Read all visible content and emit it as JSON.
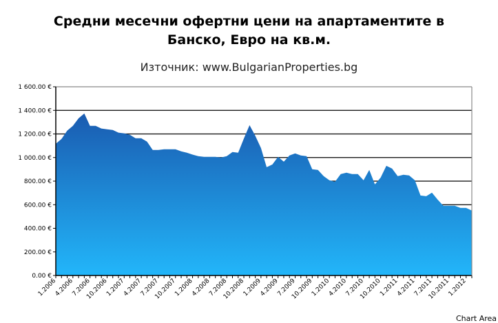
{
  "chart_data": {
    "type": "area",
    "title_line1": "Средни месечни офертни цени на апартаментите в",
    "title_line2": "Банско, Евро на кв.м.",
    "subtitle": "Източник: www.BulgarianProperties.bg",
    "xlabel": "",
    "ylabel": "",
    "ylim": [
      0,
      1600
    ],
    "y_ticks": [
      "0.00 €",
      "200.00 €",
      "400.00 €",
      "600.00 €",
      "800.00 €",
      "1 000.00 €",
      "1 200.00 €",
      "1 400.00 €",
      "1 600.00 €"
    ],
    "x_tick_labels": [
      "1.2006",
      "4.2006",
      "7.2006",
      "10.2006",
      "1.2007",
      "4.2007",
      "7.2007",
      "10.2007",
      "1.2008",
      "4.2008",
      "7.2008",
      "10.2008",
      "1.2009",
      "4.2009",
      "7.2009",
      "10.2009",
      "1.2010",
      "4.2010",
      "7.2010",
      "10.2010",
      "1.2011",
      "4.2011",
      "7.2011",
      "10.2011",
      "1.2012"
    ],
    "x_start": "1.2006",
    "x_end": "2.2012",
    "values": [
      1117,
      1158,
      1228,
      1269,
      1333,
      1374,
      1269,
      1269,
      1246,
      1240,
      1234,
      1211,
      1205,
      1193,
      1164,
      1164,
      1135,
      1064,
      1064,
      1070,
      1070,
      1070,
      1053,
      1041,
      1025,
      1012,
      1006,
      1006,
      1006,
      1000,
      1012,
      1047,
      1041,
      1160,
      1275,
      1185,
      1080,
      918,
      941,
      1006,
      965,
      1018,
      1035,
      1018,
      1012,
      901,
      895,
      842,
      807,
      795,
      860,
      871,
      860,
      860,
      807,
      895,
      772,
      830,
      930,
      906,
      842,
      854,
      848,
      807,
      678,
      672,
      702,
      643,
      591,
      591,
      591,
      573,
      573,
      550
    ],
    "grid": "horizontal",
    "legend": "none",
    "colors": {
      "fill_top": "#1a5bb0",
      "fill_bottom": "#22b6fa",
      "grid": "#000000"
    }
  },
  "overlay": {
    "chart_area_label": "Chart Area"
  }
}
